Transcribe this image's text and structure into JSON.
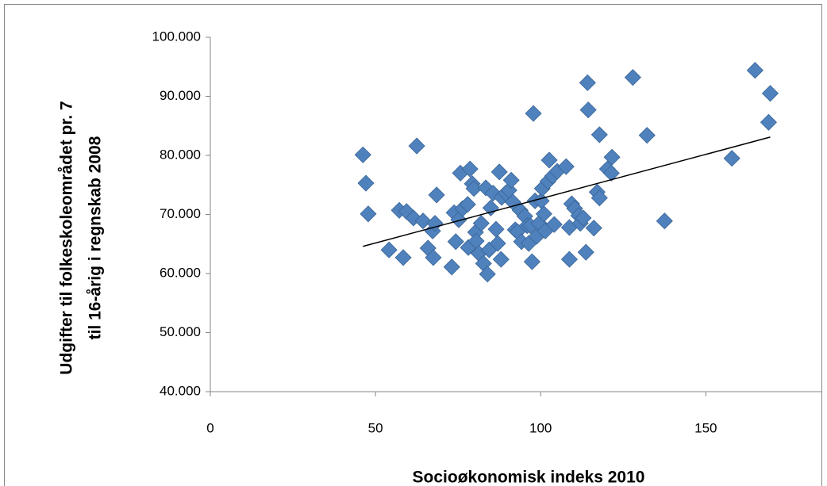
{
  "chart_data": {
    "type": "scatter",
    "x_label": "Socioøkonomisk indeks 2010",
    "y_label": [
      "Udgifter til folkeskoleområdet pr. 7",
      "til 16-årig i regnskab 2008"
    ],
    "xlim": [
      0,
      185
    ],
    "xticks": [
      0,
      50,
      100,
      150
    ],
    "ylim": [
      40000,
      100000
    ],
    "yticks": [
      {
        "value": 40000,
        "label": "40.000"
      },
      {
        "value": 50000,
        "label": "50.000"
      },
      {
        "value": 60000,
        "label": "60.000"
      },
      {
        "value": 70000,
        "label": "70.000"
      },
      {
        "value": 80000,
        "label": "80.000"
      },
      {
        "value": 90000,
        "label": "90.000"
      },
      {
        "value": 100000,
        "label": "100.000"
      }
    ],
    "color": "#4f81bd",
    "x": [
      46.2,
      47.1,
      47.8,
      54.1,
      57.2,
      58.4,
      59.4,
      61.5,
      62.5,
      64.4,
      65.9,
      67.3,
      67.5,
      68.0,
      68.5,
      73.1,
      73.8,
      74.3,
      75.2,
      75.7,
      76.4,
      77.9,
      78.1,
      78.6,
      79.3,
      79.8,
      80.3,
      80.5,
      81.3,
      82.0,
      82.7,
      83.4,
      83.9,
      84.4,
      84.9,
      85.6,
      86.5,
      87.0,
      87.5,
      88.0,
      88.2,
      89.4,
      90.4,
      91.1,
      91.6,
      92.3,
      93.0,
      93.8,
      94.2,
      95.2,
      95.9,
      96.4,
      96.9,
      97.4,
      97.8,
      98.3,
      98.8,
      99.5,
      100.2,
      100.5,
      101.0,
      101.4,
      102.2,
      102.6,
      103.6,
      104.1,
      105.0,
      107.7,
      108.7,
      108.7,
      109.4,
      110.3,
      111.5,
      112.0,
      112.9,
      113.7,
      114.2,
      114.4,
      116.1,
      117.1,
      117.8,
      117.8,
      120.2,
      121.6,
      121.4,
      127.9,
      132.2,
      137.5,
      157.9,
      164.9,
      169.0,
      169.5
    ],
    "values": [
      80100,
      75300,
      70100,
      64000,
      70700,
      62700,
      70500,
      69400,
      81600,
      68900,
      64300,
      67200,
      62700,
      68500,
      73300,
      61100,
      70300,
      65400,
      69100,
      77000,
      71000,
      71700,
      64400,
      77700,
      75200,
      74400,
      67000,
      65500,
      63400,
      68500,
      61700,
      74500,
      59900,
      64000,
      71100,
      73600,
      67500,
      65100,
      77200,
      62400,
      72900,
      73600,
      74100,
      75800,
      72100,
      67400,
      67100,
      70700,
      65400,
      69700,
      68100,
      65100,
      68100,
      62000,
      87100,
      72300,
      66300,
      68500,
      72300,
      74400,
      70100,
      67200,
      75600,
      79200,
      76500,
      68300,
      77300,
      78100,
      67800,
      62400,
      71800,
      71000,
      69800,
      68500,
      69400,
      63600,
      92300,
      87700,
      67700,
      73800,
      72800,
      83500,
      77700,
      79700,
      77000,
      93200,
      83400,
      68900,
      79500,
      94400,
      85600,
      90500
    ],
    "trendline": {
      "x": [
        46.2,
        169.5
      ],
      "values": [
        64600,
        83100
      ],
      "color": "#000000"
    }
  }
}
